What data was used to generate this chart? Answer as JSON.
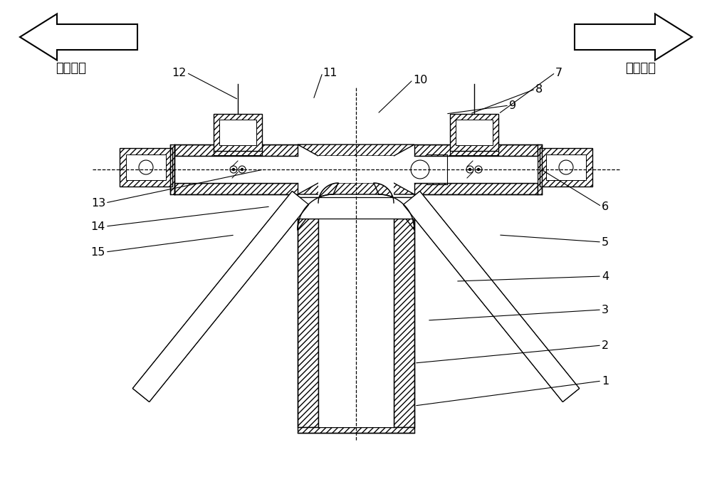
{
  "figsize": [
    10.0,
    6.7
  ],
  "dpi": 100,
  "bg": "#ffffff",
  "lc": "#000000",
  "left_text": "翼展方向",
  "right_text": "翼展方向",
  "labels": [
    "1",
    "2",
    "3",
    "4",
    "5",
    "6",
    "7",
    "8",
    "9",
    "10",
    "11",
    "12",
    "13",
    "14",
    "15"
  ]
}
